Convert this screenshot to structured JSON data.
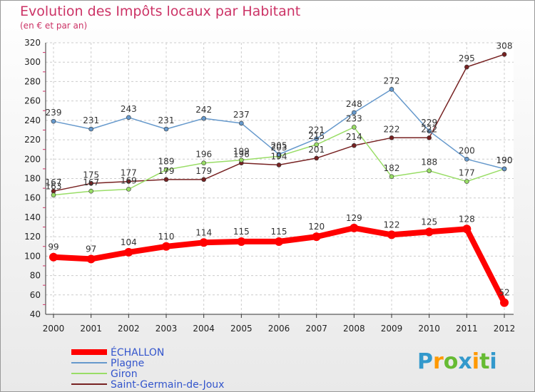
{
  "chart_data": {
    "type": "line",
    "title": "Evolution des Impôts locaux par Habitant",
    "subtitle": "(en € et par an)",
    "x": [
      2000,
      2001,
      2002,
      2003,
      2004,
      2005,
      2006,
      2007,
      2008,
      2009,
      2010,
      2011,
      2012
    ],
    "ylim": [
      40,
      320
    ],
    "yticks": [
      40,
      60,
      80,
      100,
      120,
      140,
      160,
      180,
      200,
      220,
      240,
      260,
      280,
      300,
      320
    ],
    "grid": true,
    "legend_position": "bottom-left",
    "series": [
      {
        "name": "ÉCHALLON",
        "color": "#ff0000",
        "values": [
          99,
          97,
          104,
          110,
          114,
          115,
          115,
          120,
          129,
          122,
          125,
          128,
          52
        ]
      },
      {
        "name": "Plagne",
        "color": "#6699cc",
        "values": [
          239,
          231,
          243,
          231,
          242,
          237,
          205,
          221,
          248,
          272,
          229,
          200,
          190
        ]
      },
      {
        "name": "Giron",
        "color": "#99dd66",
        "values": [
          163,
          167,
          169,
          189,
          196,
          199,
          203,
          215,
          233,
          182,
          188,
          177,
          190
        ]
      },
      {
        "name": "Saint-Germain-de-Joux",
        "color": "#772222",
        "values": [
          167,
          175,
          177,
          179,
          179,
          196,
          194,
          201,
          214,
          222,
          222,
          295,
          308
        ]
      }
    ]
  },
  "logo": {
    "letters": [
      "P",
      "r",
      "o",
      "x",
      "i",
      "t",
      "i"
    ],
    "colors": [
      "#3399cc",
      "#ff9900",
      "#66bb33",
      "#3399cc",
      "#ff9900",
      "#66bb33",
      "#3399cc"
    ]
  }
}
